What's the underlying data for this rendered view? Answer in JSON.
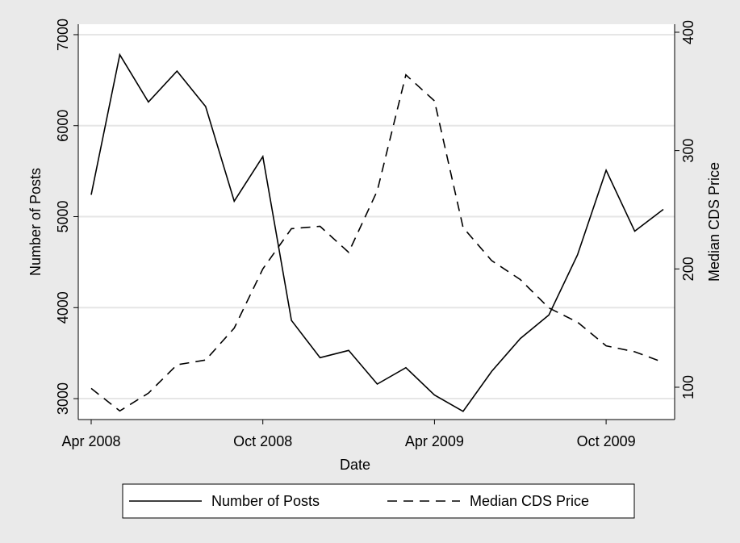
{
  "chart_data": {
    "type": "line",
    "x_label": "Date",
    "y_label": "Number of Posts",
    "y2_label": "Median CDS Price",
    "x": [
      "2008-04",
      "2008-05",
      "2008-06",
      "2008-07",
      "2008-08",
      "2008-09",
      "2008-10",
      "2008-11",
      "2008-12",
      "2009-01",
      "2009-02",
      "2009-03",
      "2009-04",
      "2009-05",
      "2009-06",
      "2009-07",
      "2009-08",
      "2009-09",
      "2009-10",
      "2009-11",
      "2009-12"
    ],
    "xlim": [
      "2008-04",
      "2009-12"
    ],
    "xticks": [
      {
        "value": "2008-04",
        "label": "Apr 2008"
      },
      {
        "value": "2008-10",
        "label": "Oct 2008"
      },
      {
        "value": "2009-04",
        "label": "Apr 2009"
      },
      {
        "value": "2009-10",
        "label": "Oct 2009"
      }
    ],
    "ylim": [
      2770,
      7115
    ],
    "yticks": [
      3000,
      4000,
      5000,
      6000,
      7000
    ],
    "y2lim": [
      72.7,
      406.8
    ],
    "y2ticks": [
      100,
      200,
      300,
      400
    ],
    "grid": true,
    "legend": "bottom",
    "series": [
      {
        "name": "Number of Posts",
        "color": "#000000",
        "line_style": "solid",
        "axis": "y",
        "values": [
          5240,
          6780,
          6260,
          6600,
          6210,
          5170,
          5660,
          3860,
          3450,
          3530,
          3160,
          3340,
          3040,
          2860,
          3300,
          3660,
          3920,
          4580,
          5510,
          4840,
          5080
        ]
      },
      {
        "name": "Median CDS Price",
        "color": "#000000",
        "line_style": "dashed",
        "axis": "y2",
        "values": [
          99,
          80,
          95,
          119,
          123,
          150,
          200,
          234,
          236,
          214,
          266,
          364,
          342,
          235,
          207,
          191,
          167,
          155,
          135,
          130,
          121
        ]
      }
    ]
  }
}
